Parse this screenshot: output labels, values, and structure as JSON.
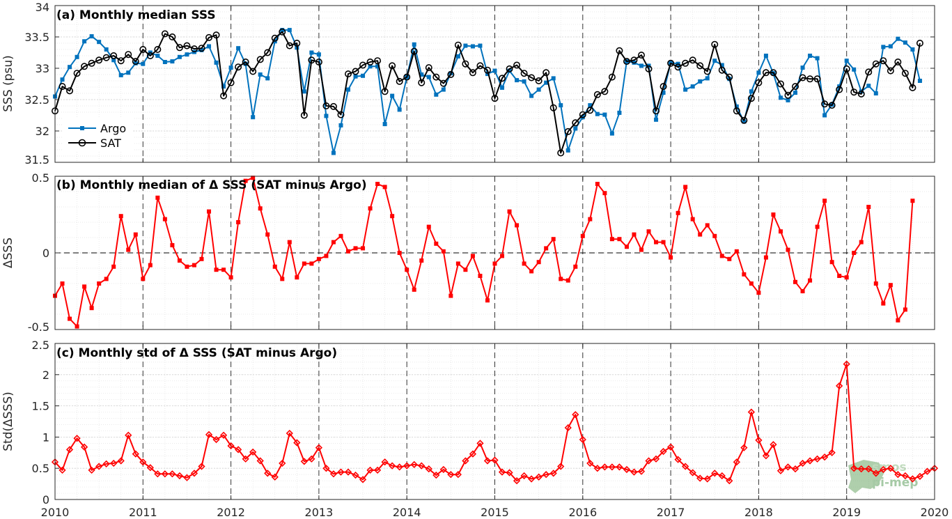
{
  "chart_data": [
    {
      "type": "line",
      "title": "(a) Monthly median SSS",
      "xlabel": "",
      "ylabel": "SSS (psu)",
      "xlim": [
        2010,
        2020
      ],
      "ylim": [
        31.5,
        34
      ],
      "yticks": [
        "31.5",
        "32",
        "32.5",
        "33",
        "33.5",
        "34"
      ],
      "ytick_values": [
        31.5,
        32,
        32.5,
        33,
        33.5,
        34
      ],
      "grid": true,
      "legend": "bottom-left",
      "series": [
        {
          "name": "Argo",
          "color": "#0072BD",
          "marker": "square",
          "x_start": 2010.0,
          "x_step": 0.083333,
          "values": [
            32.55,
            32.82,
            33.02,
            33.18,
            33.43,
            33.51,
            33.42,
            33.3,
            33.13,
            32.89,
            32.93,
            33.08,
            33.07,
            33.25,
            33.2,
            33.1,
            33.11,
            33.18,
            33.22,
            33.26,
            33.29,
            33.35,
            33.09,
            32.71,
            33.01,
            33.32,
            33.07,
            32.22,
            32.9,
            32.84,
            33.43,
            33.61,
            33.61,
            33.33,
            32.63,
            33.25,
            33.22,
            32.24,
            31.65,
            32.09,
            32.66,
            32.87,
            32.88,
            33.03,
            33.03,
            32.11,
            32.56,
            32.34,
            32.86,
            33.38,
            32.9,
            32.86,
            32.58,
            32.66,
            32.92,
            33.19,
            33.36,
            33.35,
            33.36,
            32.91,
            32.96,
            32.69,
            32.96,
            32.81,
            32.79,
            32.56,
            32.66,
            32.77,
            32.84,
            32.41,
            31.69,
            32.04,
            32.22,
            32.41,
            32.27,
            32.26,
            31.96,
            32.29,
            33.11,
            33.09,
            33.04,
            33.04,
            32.18,
            32.61,
            33.09,
            33.07,
            32.66,
            32.71,
            32.79,
            32.84,
            33.12,
            33.05,
            32.83,
            32.39,
            32.15,
            32.63,
            32.93,
            33.2,
            32.92,
            32.53,
            32.49,
            32.61,
            33.01,
            33.2,
            33.16,
            32.25,
            32.42,
            32.71,
            33.12,
            32.98,
            32.63,
            32.72,
            32.6,
            33.34,
            33.35,
            33.47,
            33.41,
            33.3,
            32.8
          ]
        },
        {
          "name": "SAT",
          "color": "#000000",
          "marker": "circle",
          "x_start": 2010.0,
          "x_step": 0.083333,
          "values": [
            32.32,
            32.71,
            32.64,
            32.92,
            33.03,
            33.08,
            33.13,
            33.17,
            33.2,
            33.12,
            33.22,
            33.11,
            33.3,
            33.2,
            33.3,
            33.55,
            33.5,
            33.33,
            33.36,
            33.31,
            33.32,
            33.49,
            33.53,
            32.56,
            32.77,
            33.02,
            33.1,
            32.95,
            33.14,
            33.25,
            33.48,
            33.58,
            33.36,
            33.4,
            32.25,
            33.13,
            33.1,
            32.4,
            32.39,
            32.26,
            32.91,
            32.95,
            33.05,
            33.1,
            33.12,
            32.63,
            33.04,
            32.79,
            32.86,
            33.27,
            32.77,
            33.01,
            32.86,
            32.76,
            32.9,
            33.37,
            33.07,
            32.93,
            33.04,
            32.97,
            32.52,
            32.84,
            32.99,
            33.05,
            32.92,
            32.85,
            32.8,
            32.93,
            32.37,
            31.65,
            31.99,
            32.13,
            32.26,
            32.33,
            32.58,
            32.63,
            32.86,
            33.28,
            33.11,
            33.13,
            33.21,
            32.99,
            32.32,
            32.71,
            33.08,
            33.02,
            33.08,
            33.13,
            33.04,
            32.95,
            33.38,
            32.97,
            32.86,
            32.32,
            32.17,
            32.52,
            32.77,
            32.93,
            32.93,
            32.75,
            32.57,
            32.71,
            32.85,
            32.83,
            32.83,
            32.43,
            32.41,
            32.66,
            32.99,
            32.62,
            32.59,
            32.94,
            33.07,
            33.12,
            32.96,
            33.1,
            32.92,
            32.69,
            33.4
          ]
        }
      ]
    },
    {
      "type": "line",
      "title": "(b) Monthly median of Δ SSS (SAT minus Argo)",
      "xlabel": "",
      "ylabel": "ΔSSS",
      "xlim": [
        2010,
        2020
      ],
      "ylim": [
        -0.5,
        0.5
      ],
      "yticks": [
        "-0.5",
        "0",
        "0.5"
      ],
      "ytick_values": [
        -0.5,
        0,
        0.5
      ],
      "zero_line": "dashed",
      "grid": true,
      "series": [
        {
          "color": "#FF0000",
          "marker": "square",
          "x_start": 2010.0,
          "x_step": 0.083333,
          "values": [
            -0.28,
            -0.2,
            -0.43,
            -0.48,
            -0.22,
            -0.36,
            -0.2,
            -0.17,
            -0.09,
            0.24,
            0.02,
            0.12,
            -0.17,
            -0.08,
            0.36,
            0.22,
            0.05,
            -0.05,
            -0.09,
            -0.08,
            -0.04,
            0.27,
            -0.11,
            -0.11,
            -0.16,
            0.2,
            0.47,
            0.49,
            0.29,
            0.12,
            -0.09,
            -0.17,
            0.07,
            -0.16,
            -0.07,
            -0.07,
            -0.04,
            -0.02,
            0.07,
            0.11,
            0.01,
            0.03,
            0.03,
            0.29,
            0.45,
            0.43,
            0.24,
            0.0,
            -0.11,
            -0.24,
            -0.05,
            0.17,
            0.06,
            0.01,
            -0.28,
            -0.07,
            -0.11,
            -0.02,
            -0.15,
            -0.31,
            -0.07,
            -0.02,
            0.27,
            0.18,
            -0.07,
            -0.12,
            -0.06,
            0.03,
            0.09,
            -0.17,
            -0.18,
            -0.09,
            0.11,
            0.22,
            0.45,
            0.39,
            0.09,
            0.09,
            0.04,
            0.12,
            0.02,
            0.14,
            0.07,
            0.07,
            -0.03,
            0.26,
            0.43,
            0.22,
            0.12,
            0.18,
            0.11,
            -0.02,
            -0.04,
            0.01,
            -0.14,
            -0.2,
            -0.26,
            -0.03,
            0.25,
            0.14,
            0.02,
            -0.19,
            -0.25,
            -0.18,
            0.17,
            0.34,
            -0.06,
            -0.15,
            -0.16,
            0.0,
            0.07,
            0.3,
            -0.2,
            -0.33,
            -0.21,
            -0.44,
            -0.37,
            0.34
          ]
        }
      ]
    },
    {
      "type": "line",
      "title": "(c) Monthly std of Δ SSS (SAT minus Argo)",
      "xlabel": "",
      "ylabel": "Std(ΔSSS)",
      "xlim": [
        2010,
        2020
      ],
      "ylim": [
        0,
        2.5
      ],
      "yticks": [
        "0",
        "0.5",
        "1",
        "1.5",
        "2",
        "2.5"
      ],
      "ytick_values": [
        0,
        0.5,
        1,
        1.5,
        2,
        2.5
      ],
      "xticks": [
        "2010",
        "2011",
        "2012",
        "2013",
        "2014",
        "2015",
        "2016",
        "2017",
        "2018",
        "2019",
        "2020"
      ],
      "xtick_values": [
        2010,
        2011,
        2012,
        2013,
        2014,
        2015,
        2016,
        2017,
        2018,
        2019,
        2020
      ],
      "grid": true,
      "series": [
        {
          "color": "#FF0000",
          "marker": "diamond",
          "x_start": 2010.0,
          "x_step": 0.083333,
          "values": [
            0.6,
            0.47,
            0.8,
            0.98,
            0.84,
            0.47,
            0.53,
            0.57,
            0.58,
            0.62,
            1.03,
            0.73,
            0.6,
            0.51,
            0.41,
            0.41,
            0.41,
            0.38,
            0.35,
            0.42,
            0.53,
            1.04,
            0.96,
            1.03,
            0.86,
            0.8,
            0.65,
            0.76,
            0.62,
            0.42,
            0.36,
            0.58,
            1.06,
            0.91,
            0.61,
            0.65,
            0.83,
            0.5,
            0.41,
            0.44,
            0.44,
            0.39,
            0.32,
            0.47,
            0.47,
            0.6,
            0.54,
            0.52,
            0.54,
            0.56,
            0.54,
            0.49,
            0.39,
            0.48,
            0.4,
            0.4,
            0.62,
            0.73,
            0.9,
            0.62,
            0.63,
            0.44,
            0.43,
            0.3,
            0.38,
            0.33,
            0.36,
            0.4,
            0.42,
            0.53,
            1.15,
            1.36,
            0.96,
            0.58,
            0.5,
            0.52,
            0.52,
            0.52,
            0.48,
            0.44,
            0.45,
            0.62,
            0.65,
            0.77,
            0.84,
            0.64,
            0.53,
            0.43,
            0.34,
            0.33,
            0.42,
            0.38,
            0.3,
            0.6,
            0.83,
            1.4,
            0.95,
            0.7,
            0.88,
            0.46,
            0.52,
            0.49,
            0.58,
            0.62,
            0.65,
            0.68,
            0.75,
            1.82,
            2.17,
            0.5,
            0.49,
            0.49,
            0.42,
            0.48,
            0.5,
            0.4,
            0.38,
            0.33,
            0.37,
            0.45,
            0.5
          ]
        }
      ]
    }
  ],
  "legend": {
    "items": [
      "Argo",
      "SAT"
    ]
  },
  "watermark": {
    "text_top": "smos",
    "text_bottom": "pi-mep"
  }
}
